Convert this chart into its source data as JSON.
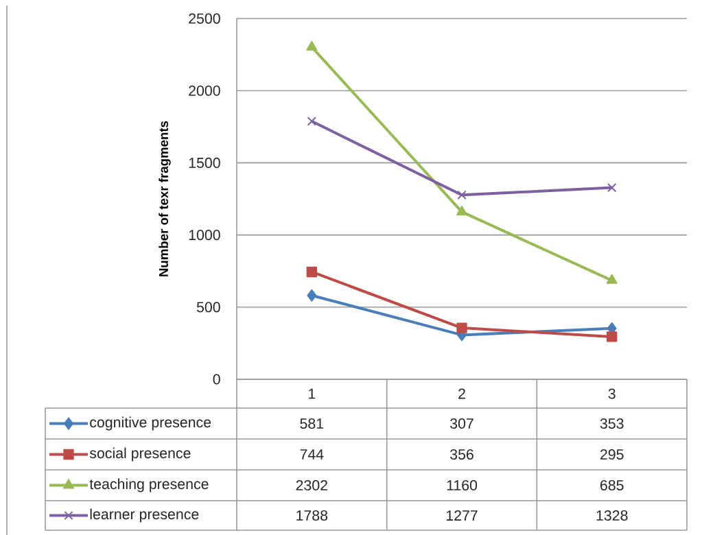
{
  "chart_data": {
    "type": "line",
    "ylabel": "Number of texr fragments",
    "categories": [
      "1",
      "2",
      "3"
    ],
    "series": [
      {
        "name": "cognitive presence",
        "color": "#4a7ebb",
        "marker": "diamond",
        "values": [
          581,
          307,
          353
        ]
      },
      {
        "name": "social presence",
        "color": "#be4b48",
        "marker": "square",
        "values": [
          744,
          356,
          295
        ]
      },
      {
        "name": "teaching presence",
        "color": "#98b954",
        "marker": "triangle",
        "values": [
          2302,
          1160,
          685
        ]
      },
      {
        "name": "learner presence",
        "color": "#7d60a0",
        "marker": "cross",
        "values": [
          1788,
          1277,
          1328
        ]
      }
    ],
    "ylim": [
      0,
      2500
    ],
    "yticks": [
      0,
      500,
      1000,
      1500,
      2000,
      2500
    ],
    "grid": "y",
    "legend": "bottom",
    "data_labels": true
  }
}
